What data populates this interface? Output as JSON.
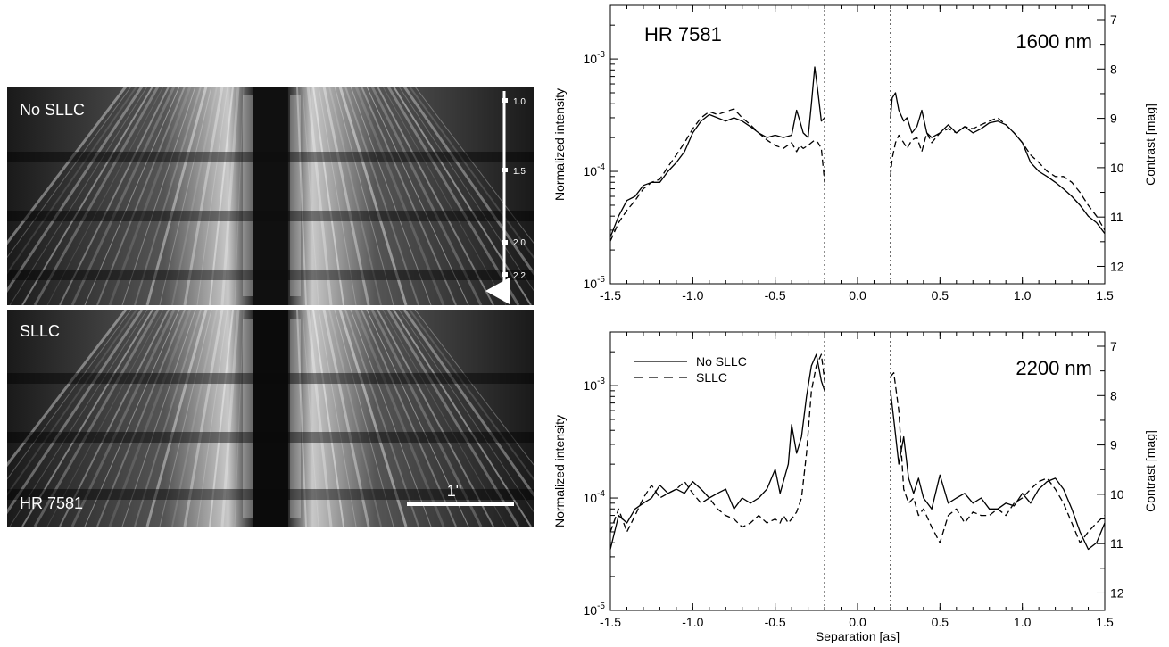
{
  "image_panel": {
    "top_label": "No SLLC",
    "bottom_label": "SLLC",
    "star_label": "HR 7581",
    "scale_bar_label": "1\"",
    "wavelength_scale": [
      "1.0",
      "1.5",
      "2.0",
      "2.2"
    ]
  },
  "chart_data": [
    {
      "type": "line",
      "title": "",
      "annotation_left": "HR 7581",
      "annotation_right": "1600 nm",
      "xlabel": "",
      "ylabel": "Normalized intensity",
      "ylabel_right": "Contrast [mag]",
      "xlim": [
        -1.5,
        1.5
      ],
      "ylim": [
        1e-05,
        0.003
      ],
      "yscale": "log",
      "x_ticks": [
        -1.5,
        -1.0,
        -0.5,
        0.0,
        0.5,
        1.0,
        1.5
      ],
      "x_tick_labels": [
        "-1.5",
        "-1.0",
        "-0.5",
        "0.0",
        "0.5",
        "1.0",
        "1.5"
      ],
      "y_ticks": [
        1e-05,
        0.0001,
        0.001
      ],
      "y_tick_labels": [
        [
          "10",
          "-5"
        ],
        [
          "10",
          "-4"
        ],
        [
          "10",
          "-3"
        ]
      ],
      "right_ticks": [
        7,
        8,
        9,
        10,
        11,
        12
      ],
      "vlines": [
        -0.2,
        0.2
      ],
      "series": [
        {
          "name": "No SLLC",
          "style": "solid",
          "x": [
            -1.5,
            -1.45,
            -1.4,
            -1.35,
            -1.3,
            -1.25,
            -1.2,
            -1.15,
            -1.1,
            -1.05,
            -1.0,
            -0.95,
            -0.9,
            -0.85,
            -0.8,
            -0.75,
            -0.7,
            -0.65,
            -0.6,
            -0.55,
            -0.5,
            -0.45,
            -0.4,
            -0.37,
            -0.35,
            -0.33,
            -0.3,
            -0.28,
            -0.26,
            -0.24,
            -0.22,
            -0.2,
            null,
            0.2,
            0.21,
            0.23,
            0.25,
            0.28,
            0.3,
            0.33,
            0.36,
            0.39,
            0.42,
            0.45,
            0.5,
            0.55,
            0.6,
            0.65,
            0.7,
            0.75,
            0.8,
            0.85,
            0.9,
            0.95,
            1.0,
            1.05,
            1.1,
            1.15,
            1.2,
            1.25,
            1.3,
            1.35,
            1.4,
            1.45,
            1.5
          ],
          "values": [
            2.6e-05,
            4e-05,
            5.5e-05,
            6e-05,
            7.5e-05,
            8e-05,
            8e-05,
            0.0001,
            0.00012,
            0.00015,
            0.00022,
            0.00028,
            0.00032,
            0.0003,
            0.00028,
            0.0003,
            0.00028,
            0.00025,
            0.00022,
            0.0002,
            0.00021,
            0.0002,
            0.00021,
            0.00035,
            0.00028,
            0.00022,
            0.0002,
            0.0004,
            0.00085,
            0.0005,
            0.00028,
            0.0003,
            null,
            0.0003,
            0.00045,
            0.0005,
            0.00035,
            0.00028,
            0.0003,
            0.00022,
            0.00025,
            0.00035,
            0.00022,
            0.0002,
            0.00022,
            0.00026,
            0.00022,
            0.00025,
            0.00022,
            0.00024,
            0.00027,
            0.00028,
            0.00026,
            0.00022,
            0.00018,
            0.00012,
            0.0001,
            9e-05,
            8e-05,
            7e-05,
            6e-05,
            5e-05,
            4e-05,
            3.5e-05,
            2.8e-05
          ]
        },
        {
          "name": "SLLC",
          "style": "dashed",
          "x": [
            -1.5,
            -1.45,
            -1.4,
            -1.35,
            -1.3,
            -1.25,
            -1.2,
            -1.15,
            -1.1,
            -1.05,
            -1.0,
            -0.95,
            -0.9,
            -0.85,
            -0.8,
            -0.75,
            -0.7,
            -0.65,
            -0.6,
            -0.55,
            -0.5,
            -0.45,
            -0.4,
            -0.37,
            -0.35,
            -0.33,
            -0.3,
            -0.28,
            -0.26,
            -0.24,
            -0.22,
            -0.2,
            null,
            0.2,
            0.21,
            0.23,
            0.25,
            0.28,
            0.3,
            0.33,
            0.36,
            0.39,
            0.42,
            0.45,
            0.5,
            0.55,
            0.6,
            0.65,
            0.7,
            0.75,
            0.8,
            0.85,
            0.9,
            0.95,
            1.0,
            1.05,
            1.1,
            1.15,
            1.2,
            1.25,
            1.3,
            1.35,
            1.4,
            1.45,
            1.5
          ],
          "values": [
            2.4e-05,
            3.5e-05,
            4.5e-05,
            5.5e-05,
            7e-05,
            8e-05,
            8.5e-05,
            0.00011,
            0.00014,
            0.00018,
            0.00024,
            0.0003,
            0.00034,
            0.00032,
            0.00034,
            0.00036,
            0.0003,
            0.00026,
            0.00022,
            0.00019,
            0.00017,
            0.00016,
            0.00018,
            0.00015,
            0.00017,
            0.00016,
            0.00017,
            0.00018,
            0.00019,
            0.00018,
            0.00016,
            8e-05,
            null,
            9e-05,
            0.00013,
            0.00018,
            0.00021,
            0.00018,
            0.00016,
            0.00019,
            0.0002,
            0.00015,
            0.00022,
            0.00018,
            0.00022,
            0.00024,
            0.00022,
            0.00025,
            0.00024,
            0.00026,
            0.00028,
            0.0003,
            0.00026,
            0.00022,
            0.00018,
            0.00014,
            0.00012,
            0.0001,
            9e-05,
            9e-05,
            8e-05,
            6.5e-05,
            5e-05,
            4e-05,
            3e-05
          ]
        }
      ]
    },
    {
      "type": "line",
      "title": "",
      "annotation_right": "2200 nm",
      "xlabel": "Separation [as]",
      "ylabel": "Normalized intensity",
      "ylabel_right": "Contrast [mag]",
      "xlim": [
        -1.5,
        1.5
      ],
      "ylim": [
        1e-05,
        0.003
      ],
      "yscale": "log",
      "x_ticks": [
        -1.5,
        -1.0,
        -0.5,
        0.0,
        0.5,
        1.0,
        1.5
      ],
      "x_tick_labels": [
        "-1.5",
        "-1.0",
        "-0.5",
        "0.0",
        "0.5",
        "1.0",
        "1.5"
      ],
      "y_ticks": [
        1e-05,
        0.0001,
        0.001
      ],
      "y_tick_labels": [
        [
          "10",
          "-5"
        ],
        [
          "10",
          "-4"
        ],
        [
          "10",
          "-3"
        ]
      ],
      "right_ticks": [
        7,
        8,
        9,
        10,
        11,
        12
      ],
      "vlines": [
        -0.2,
        0.2
      ],
      "legend": [
        {
          "label": "No SLLC",
          "style": "solid"
        },
        {
          "label": "SLLC",
          "style": "dashed"
        }
      ],
      "series": [
        {
          "name": "No SLLC",
          "style": "solid",
          "x": [
            -1.5,
            -1.45,
            -1.4,
            -1.35,
            -1.3,
            -1.25,
            -1.2,
            -1.15,
            -1.1,
            -1.05,
            -1.0,
            -0.95,
            -0.9,
            -0.85,
            -0.8,
            -0.75,
            -0.7,
            -0.65,
            -0.6,
            -0.55,
            -0.5,
            -0.47,
            -0.45,
            -0.42,
            -0.4,
            -0.37,
            -0.34,
            -0.31,
            -0.28,
            -0.25,
            -0.22,
            -0.2,
            null,
            0.2,
            0.22,
            0.25,
            0.28,
            0.31,
            0.34,
            0.37,
            0.4,
            0.45,
            0.5,
            0.55,
            0.6,
            0.65,
            0.7,
            0.75,
            0.8,
            0.85,
            0.9,
            0.95,
            1.0,
            1.05,
            1.1,
            1.15,
            1.2,
            1.25,
            1.3,
            1.35,
            1.4,
            1.45,
            1.5
          ],
          "values": [
            3.5e-05,
            7e-05,
            6e-05,
            8e-05,
            9e-05,
            0.0001,
            0.00013,
            0.00011,
            0.00012,
            0.00011,
            0.00014,
            0.00012,
            0.0001,
            0.00011,
            0.00012,
            8e-05,
            0.0001,
            9e-05,
            0.0001,
            0.00012,
            0.00018,
            0.00011,
            0.00014,
            0.0002,
            0.00045,
            0.00025,
            0.00035,
            0.0008,
            0.0015,
            0.0019,
            0.0011,
            0.0009,
            null,
            0.0009,
            0.0005,
            0.0002,
            0.00035,
            0.00015,
            0.00011,
            0.00015,
            0.0001,
            8e-05,
            0.00016,
            9e-05,
            0.0001,
            0.00011,
            9e-05,
            0.0001,
            8e-05,
            8e-05,
            9e-05,
            8.5e-05,
            0.00011,
            9e-05,
            0.00012,
            0.00014,
            0.00015,
            0.00012,
            8e-05,
            5e-05,
            3.5e-05,
            4e-05,
            6e-05
          ]
        },
        {
          "name": "SLLC",
          "style": "dashed",
          "x": [
            -1.5,
            -1.45,
            -1.4,
            -1.35,
            -1.3,
            -1.25,
            -1.2,
            -1.15,
            -1.1,
            -1.05,
            -1.0,
            -0.95,
            -0.9,
            -0.85,
            -0.8,
            -0.75,
            -0.7,
            -0.65,
            -0.6,
            -0.55,
            -0.5,
            -0.47,
            -0.45,
            -0.42,
            -0.4,
            -0.37,
            -0.34,
            -0.31,
            -0.28,
            -0.25,
            -0.22,
            -0.2,
            null,
            0.2,
            0.22,
            0.25,
            0.28,
            0.31,
            0.34,
            0.37,
            0.4,
            0.45,
            0.5,
            0.55,
            0.6,
            0.65,
            0.7,
            0.75,
            0.8,
            0.85,
            0.9,
            0.95,
            1.0,
            1.05,
            1.1,
            1.15,
            1.2,
            1.25,
            1.3,
            1.35,
            1.4,
            1.45,
            1.5
          ],
          "values": [
            5e-05,
            8e-05,
            5e-05,
            7e-05,
            0.0001,
            0.00013,
            0.0001,
            0.00011,
            0.00012,
            0.00014,
            0.00011,
            9e-05,
            0.0001,
            8e-05,
            7e-05,
            6.5e-05,
            5.5e-05,
            6e-05,
            7e-05,
            6e-05,
            6.5e-05,
            6e-05,
            7e-05,
            6e-05,
            6.5e-05,
            7.5e-05,
            0.0001,
            0.00025,
            0.0009,
            0.0015,
            0.0019,
            0.0011,
            null,
            0.0012,
            0.0013,
            0.0006,
            0.00012,
            9e-05,
            0.0001,
            7e-05,
            8e-05,
            5.5e-05,
            4e-05,
            7e-05,
            8e-05,
            6e-05,
            7.5e-05,
            7e-05,
            7e-05,
            8e-05,
            7e-05,
            9e-05,
            0.0001,
            0.00012,
            0.00014,
            0.00015,
            0.00012,
            9e-05,
            6e-05,
            4e-05,
            5e-05,
            6e-05,
            7e-05
          ]
        }
      ]
    }
  ]
}
